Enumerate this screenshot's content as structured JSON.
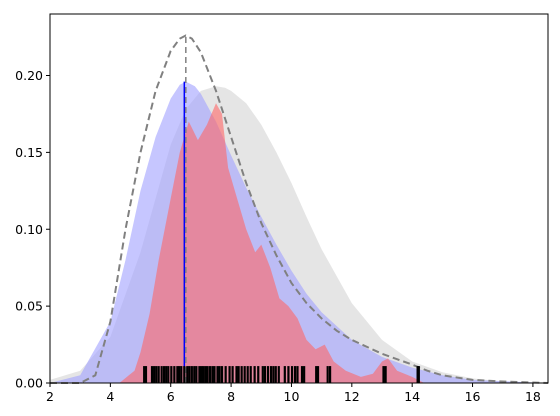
{
  "chart_data": {
    "type": "area",
    "xlim": [
      2,
      18.5
    ],
    "ylim": [
      0,
      0.24
    ],
    "x_ticks": [
      "2",
      "4",
      "6",
      "8",
      "10",
      "12",
      "14",
      "16",
      "18"
    ],
    "y_ticks": [
      "0.00",
      "0.05",
      "0.10",
      "0.15",
      "0.20"
    ],
    "grid": false,
    "legend": "none",
    "series": [
      {
        "kind": "area",
        "color": "#d3d3d3",
        "x": [
          2.0,
          3.0,
          4.0,
          5.0,
          5.5,
          6.0,
          6.5,
          7.0,
          7.5,
          7.8,
          8.0,
          8.5,
          9.0,
          9.5,
          10.0,
          10.5,
          11.0,
          12.0,
          13.0,
          14.0,
          15.0,
          16.0,
          17.0,
          18.5
        ],
        "y": [
          0.002,
          0.008,
          0.03,
          0.085,
          0.12,
          0.155,
          0.178,
          0.19,
          0.193,
          0.192,
          0.19,
          0.182,
          0.168,
          0.15,
          0.13,
          0.108,
          0.087,
          0.052,
          0.028,
          0.014,
          0.007,
          0.003,
          0.001,
          0.0
        ]
      },
      {
        "kind": "area",
        "color": "#a0a0ff",
        "x": [
          2.0,
          3.0,
          4.0,
          4.5,
          5.0,
          5.5,
          6.0,
          6.3,
          6.5,
          6.8,
          7.0,
          7.5,
          8.0,
          8.5,
          9.0,
          9.5,
          10.0,
          10.5,
          11.0,
          12.0,
          13.0,
          14.0,
          15.0,
          16.0,
          18.5
        ],
        "y": [
          0.0,
          0.005,
          0.04,
          0.08,
          0.125,
          0.16,
          0.185,
          0.194,
          0.196,
          0.193,
          0.188,
          0.17,
          0.148,
          0.127,
          0.108,
          0.09,
          0.073,
          0.058,
          0.046,
          0.028,
          0.017,
          0.01,
          0.005,
          0.002,
          0.0
        ]
      },
      {
        "kind": "area",
        "color": "#ff6666",
        "x": [
          4.3,
          4.8,
          5.0,
          5.3,
          5.6,
          6.0,
          6.3,
          6.6,
          6.9,
          7.2,
          7.5,
          7.7,
          7.9,
          8.2,
          8.5,
          8.8,
          9.0,
          9.3,
          9.6,
          9.9,
          10.2,
          10.5,
          10.8,
          11.1,
          11.4,
          11.8,
          12.3,
          12.7,
          13.0,
          13.2,
          13.5,
          14.0,
          14.4
        ],
        "y": [
          0.0,
          0.008,
          0.02,
          0.045,
          0.08,
          0.12,
          0.15,
          0.17,
          0.158,
          0.168,
          0.182,
          0.175,
          0.14,
          0.12,
          0.1,
          0.085,
          0.09,
          0.075,
          0.055,
          0.05,
          0.042,
          0.028,
          0.022,
          0.025,
          0.014,
          0.008,
          0.004,
          0.006,
          0.014,
          0.016,
          0.008,
          0.004,
          0.0
        ]
      },
      {
        "kind": "line",
        "color": "#808080",
        "style": "dashed",
        "x": [
          2.0,
          3.0,
          3.5,
          4.0,
          4.5,
          5.0,
          5.5,
          6.0,
          6.3,
          6.5,
          6.7,
          7.0,
          7.5,
          8.0,
          8.5,
          9.0,
          9.5,
          10.0,
          10.5,
          11.0,
          11.5,
          12.0,
          13.0,
          14.0,
          14.5,
          15.0,
          16.0,
          17.0,
          18.5
        ],
        "y": [
          0.0,
          0.0,
          0.005,
          0.04,
          0.1,
          0.15,
          0.19,
          0.216,
          0.224,
          0.226,
          0.224,
          0.215,
          0.19,
          0.16,
          0.13,
          0.104,
          0.083,
          0.065,
          0.052,
          0.042,
          0.034,
          0.028,
          0.019,
          0.012,
          0.008,
          0.005,
          0.002,
          0.001,
          0.0
        ]
      }
    ],
    "vlines": [
      {
        "x": 6.5,
        "y_top": 0.226,
        "color": "#808080",
        "style": "dashed"
      },
      {
        "x": 6.45,
        "y_top": 0.196,
        "color": "#0000ff",
        "style": "solid"
      }
    ],
    "rug": {
      "color": "#000000",
      "height": 0.011,
      "x": [
        5.12,
        5.18,
        5.38,
        5.45,
        5.52,
        5.6,
        5.7,
        5.78,
        5.85,
        5.92,
        6.02,
        6.12,
        6.22,
        6.28,
        6.35,
        6.45,
        6.55,
        6.62,
        6.7,
        6.78,
        6.85,
        6.95,
        7.02,
        7.08,
        7.15,
        7.22,
        7.3,
        7.38,
        7.45,
        7.55,
        7.62,
        7.7,
        7.82,
        7.95,
        8.05,
        8.18,
        8.25,
        8.35,
        8.45,
        8.55,
        8.65,
        8.78,
        8.9,
        9.05,
        9.12,
        9.22,
        9.32,
        9.4,
        9.48,
        9.58,
        9.78,
        9.9,
        10.02,
        10.12,
        10.2,
        10.35,
        10.42,
        10.82,
        10.88,
        11.2,
        11.28,
        13.05,
        13.12,
        14.18,
        14.22
      ]
    }
  }
}
